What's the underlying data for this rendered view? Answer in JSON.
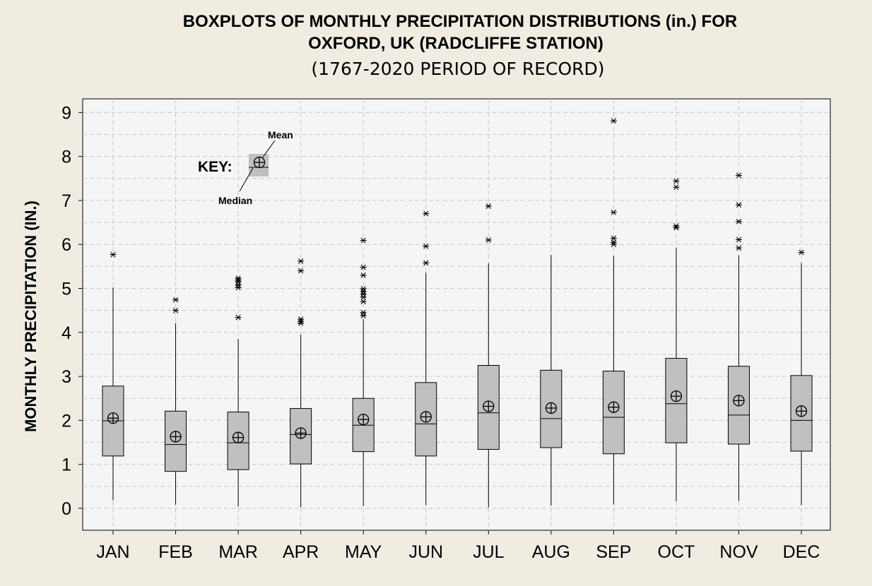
{
  "chart_data": {
    "type": "boxplot",
    "title_line1": "BOXPLOTS OF MONTHLY PRECIPITATION DISTRIBUTIONS (in.) FOR",
    "title_line2": "OXFORD, UK  (RADCLIFFE STATION)",
    "subtitle": "(1767-2020 PERIOD OF RECORD)",
    "ylabel": "MONTHLY PRECIPITATION (IN.)",
    "ylim": [
      -0.5,
      9.3
    ],
    "yticks": [
      "0",
      "1",
      "2",
      "3",
      "4",
      "5",
      "6",
      "7",
      "8",
      "9"
    ],
    "grid": true,
    "categories": [
      "JAN",
      "FEB",
      "MAR",
      "APR",
      "MAY",
      "JUN",
      "JUL",
      "AUG",
      "SEP",
      "OCT",
      "NOV",
      "DEC"
    ],
    "boxes": [
      {
        "whisker_low": 0.18,
        "q1": 1.19,
        "median": 1.99,
        "q3": 2.78,
        "whisker_high": 5.02,
        "mean": 2.05,
        "outliers": [
          5.77
        ]
      },
      {
        "whisker_low": 0.08,
        "q1": 0.84,
        "median": 1.45,
        "q3": 2.21,
        "whisker_high": 4.21,
        "mean": 1.63,
        "outliers": [
          4.5,
          4.74
        ]
      },
      {
        "whisker_low": 0.04,
        "q1": 0.88,
        "median": 1.49,
        "q3": 2.19,
        "whisker_high": 3.85,
        "mean": 1.61,
        "outliers": [
          4.34,
          5.02,
          5.08,
          5.15,
          5.19,
          5.23
        ]
      },
      {
        "whisker_low": 0.02,
        "q1": 1.01,
        "median": 1.68,
        "q3": 2.27,
        "whisker_high": 3.95,
        "mean": 1.71,
        "outliers": [
          4.21,
          4.25,
          4.3,
          5.4,
          5.62
        ]
      },
      {
        "whisker_low": 0.05,
        "q1": 1.29,
        "median": 1.89,
        "q3": 2.5,
        "whisker_high": 4.3,
        "mean": 2.02,
        "outliers": [
          4.38,
          4.45,
          4.7,
          4.8,
          4.87,
          4.93,
          4.99,
          5.3,
          5.48,
          6.09
        ]
      },
      {
        "whisker_low": 0.07,
        "q1": 1.19,
        "median": 1.92,
        "q3": 2.86,
        "whisker_high": 5.36,
        "mean": 2.08,
        "outliers": [
          5.58,
          5.96,
          6.7
        ]
      },
      {
        "whisker_low": 0.02,
        "q1": 1.34,
        "median": 2.17,
        "q3": 3.25,
        "whisker_high": 5.57,
        "mean": 2.32,
        "outliers": [
          6.1,
          6.87
        ]
      },
      {
        "whisker_low": 0.06,
        "q1": 1.38,
        "median": 2.04,
        "q3": 3.14,
        "whisker_high": 5.76,
        "mean": 2.28,
        "outliers": []
      },
      {
        "whisker_low": 0.09,
        "q1": 1.24,
        "median": 2.07,
        "q3": 3.12,
        "whisker_high": 5.74,
        "mean": 2.3,
        "outliers": [
          6.0,
          6.05,
          6.14,
          6.73,
          8.81
        ]
      },
      {
        "whisker_low": 0.16,
        "q1": 1.49,
        "median": 2.38,
        "q3": 3.41,
        "whisker_high": 5.92,
        "mean": 2.55,
        "outliers": [
          6.38,
          6.42,
          7.3,
          7.44
        ]
      },
      {
        "whisker_low": 0.17,
        "q1": 1.46,
        "median": 2.12,
        "q3": 3.23,
        "whisker_high": 5.75,
        "mean": 2.45,
        "outliers": [
          5.92,
          6.11,
          6.52,
          6.9,
          7.57
        ]
      },
      {
        "whisker_low": 0.07,
        "q1": 1.3,
        "median": 2.0,
        "q3": 3.02,
        "whisker_high": 5.58,
        "mean": 2.21,
        "outliers": [
          5.82
        ]
      }
    ],
    "key": {
      "label": "KEY:",
      "mean_label": "Mean",
      "median_label": "Median"
    },
    "colors": {
      "box_fill": "#c0c0c0",
      "plot_bg": "#f5f5f5",
      "page_bg": "#f0ece2",
      "grid": "#c8c8c8"
    }
  }
}
